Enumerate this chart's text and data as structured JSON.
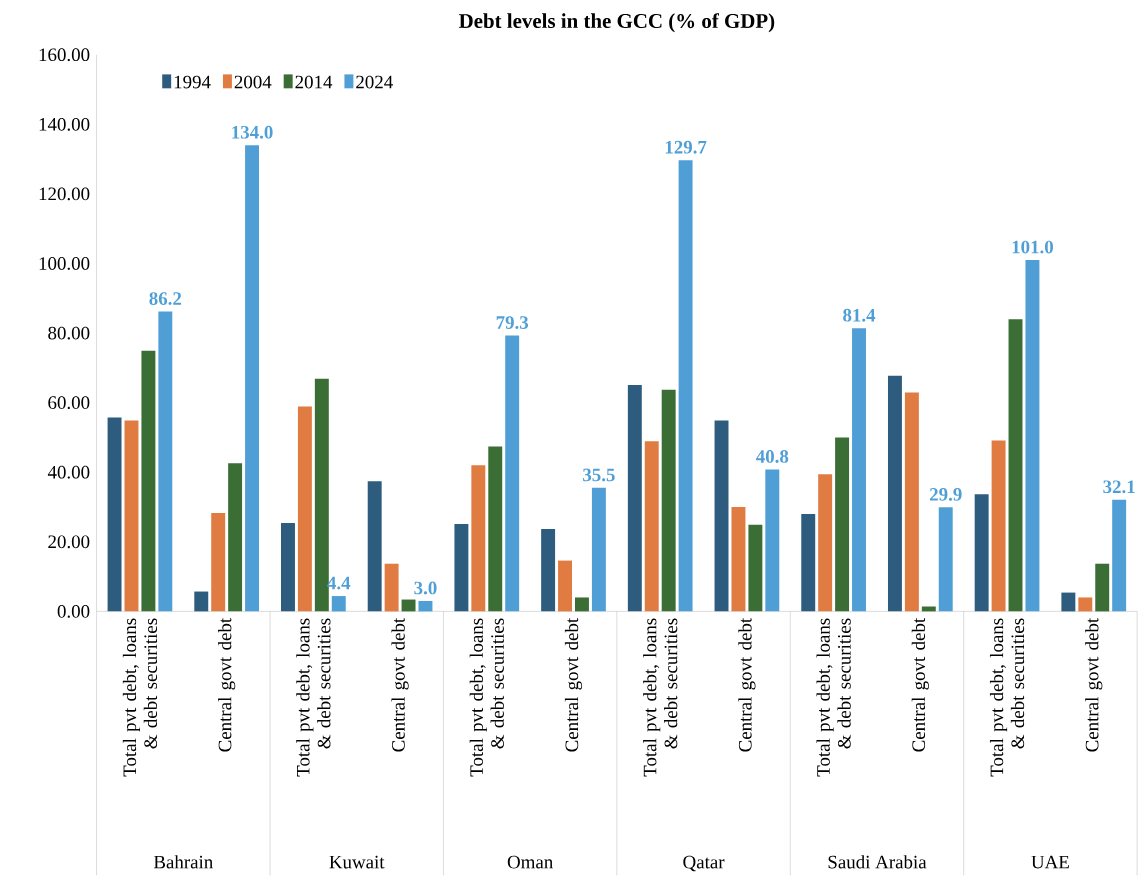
{
  "chart_data": {
    "type": "bar",
    "title": "Debt levels in the GCC (% of GDP)",
    "categories": [
      "Total pvt debt, loans & debt securities",
      "Central govt debt",
      "Total pvt debt, loans & debt securities",
      "Central govt debt",
      "Total pvt debt, loans & debt securities",
      "Central govt debt",
      "Total pvt debt, loans & debt securities",
      "Central govt debt",
      "Total pvt debt, loans & debt securities",
      "Central govt debt",
      "Total pvt debt, loans & debt securities",
      "Central govt debt"
    ],
    "annotations": [
      "Bahrain",
      "Kuwait",
      "Oman",
      "Qatar",
      "Saudi Arabia",
      "UAE"
    ],
    "series": [
      {
        "name": "1994",
        "color": "#2e5c7e",
        "values": [
          55.7,
          5.7,
          25.4,
          37.4,
          25.1,
          23.7,
          65.1,
          54.9,
          28.0,
          67.7,
          33.7,
          5.4
        ]
      },
      {
        "name": "2004",
        "color": "#e07b42",
        "values": [
          54.9,
          28.3,
          58.9,
          13.7,
          42.0,
          14.6,
          48.9,
          30.0,
          39.4,
          62.9,
          49.1,
          4.0
        ]
      },
      {
        "name": "2014",
        "color": "#3a6e34",
        "values": [
          74.9,
          42.6,
          66.9,
          3.4,
          47.4,
          4.0,
          63.7,
          24.9,
          50.0,
          1.4,
          84.0,
          13.7
        ]
      },
      {
        "name": "2024",
        "color": "#4f9fd6",
        "values": [
          86.2,
          134.0,
          4.4,
          3.0,
          79.3,
          35.5,
          129.7,
          40.8,
          81.4,
          29.9,
          101.0,
          32.1
        ],
        "value_labels": [
          "86.2",
          "134.0",
          "4.4",
          "3.0",
          "79.3",
          "35.5",
          "129.7",
          "40.8",
          "81.4",
          "29.9",
          "101.0",
          "32.1"
        ]
      }
    ],
    "ylim": [
      0,
      160
    ],
    "yticks": [
      {
        "value": 0,
        "label": "0.00"
      },
      {
        "value": 20,
        "label": "20.00"
      },
      {
        "value": 40,
        "label": "40.00"
      },
      {
        "value": 60,
        "label": "60.00"
      },
      {
        "value": 80,
        "label": "80.00"
      },
      {
        "value": 100,
        "label": "100.00"
      },
      {
        "value": 120,
        "label": "120.00"
      },
      {
        "value": 140,
        "label": "140.00"
      },
      {
        "value": 160,
        "label": "160.00"
      }
    ],
    "legend": "top left"
  }
}
